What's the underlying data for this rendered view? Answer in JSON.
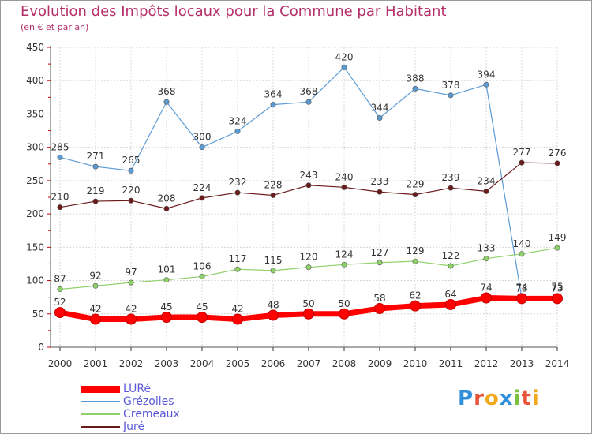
{
  "title": "Evolution des Impôts locaux pour la Commune par Habitant",
  "subtitle": "(en € et par an)",
  "logo": {
    "text": "Proxiti",
    "letter_colors": [
      "#2f8fd8",
      "#e8543a",
      "#f2a81d",
      "#2f8fd8",
      "#7cc242",
      "#e8543a",
      "#f2a81d"
    ]
  },
  "chart_data": {
    "type": "line",
    "x": [
      "2000",
      "2001",
      "2002",
      "2003",
      "2004",
      "2005",
      "2006",
      "2007",
      "2008",
      "2009",
      "2010",
      "2011",
      "2012",
      "2013",
      "2014"
    ],
    "ylim": [
      0,
      450
    ],
    "yticks": [
      "0",
      "50",
      "100",
      "150",
      "200",
      "250",
      "300",
      "350",
      "400",
      "450"
    ],
    "grid": true,
    "legend_position": "bottom-left",
    "series": [
      {
        "name": "Grézolles",
        "color": "#5b9bd5",
        "line_width": 1.2,
        "values": [
          285,
          271,
          265,
          368,
          300,
          324,
          364,
          368,
          420,
          344,
          388,
          378,
          394,
          74,
          75
        ],
        "labels": [
          "285",
          "271",
          "265",
          "368",
          "300",
          "324",
          "364",
          "368",
          "420",
          "344",
          "388",
          "378",
          "394",
          "74",
          "75"
        ]
      },
      {
        "name": "Juré",
        "color": "#6b1a1a",
        "line_width": 1.2,
        "values": [
          210,
          219,
          220,
          208,
          224,
          232,
          228,
          243,
          240,
          233,
          229,
          239,
          234,
          277,
          276
        ],
        "labels": [
          "210",
          "219",
          "220",
          "208",
          "224",
          "232",
          "228",
          "243",
          "240",
          "233",
          "229",
          "239",
          "234",
          "277",
          "276"
        ]
      },
      {
        "name": "Cremeaux",
        "color": "#8fd16a",
        "line_width": 1.2,
        "values": [
          87,
          92,
          97,
          101,
          106,
          117,
          115,
          120,
          124,
          127,
          129,
          122,
          133,
          140,
          149
        ],
        "labels": [
          "87",
          "92",
          "97",
          "101",
          "106",
          "117",
          "115",
          "120",
          "124",
          "127",
          "129",
          "122",
          "133",
          "140",
          "149"
        ]
      },
      {
        "name": "LURé",
        "color": "#ff0000",
        "line_width": 7,
        "values": [
          52,
          42,
          42,
          45,
          45,
          42,
          48,
          50,
          50,
          58,
          62,
          64,
          74,
          73,
          73
        ],
        "labels": [
          "52",
          "42",
          "42",
          "45",
          "45",
          "42",
          "48",
          "50",
          "50",
          "58",
          "62",
          "64",
          "74",
          "73",
          "73"
        ]
      }
    ],
    "legend": [
      {
        "name": "LURé",
        "color": "#ff0000"
      },
      {
        "name": "Grézolles",
        "color": "#5b9bd5"
      },
      {
        "name": "Cremeaux",
        "color": "#8fd16a"
      },
      {
        "name": "Juré",
        "color": "#6b1a1a"
      }
    ]
  }
}
